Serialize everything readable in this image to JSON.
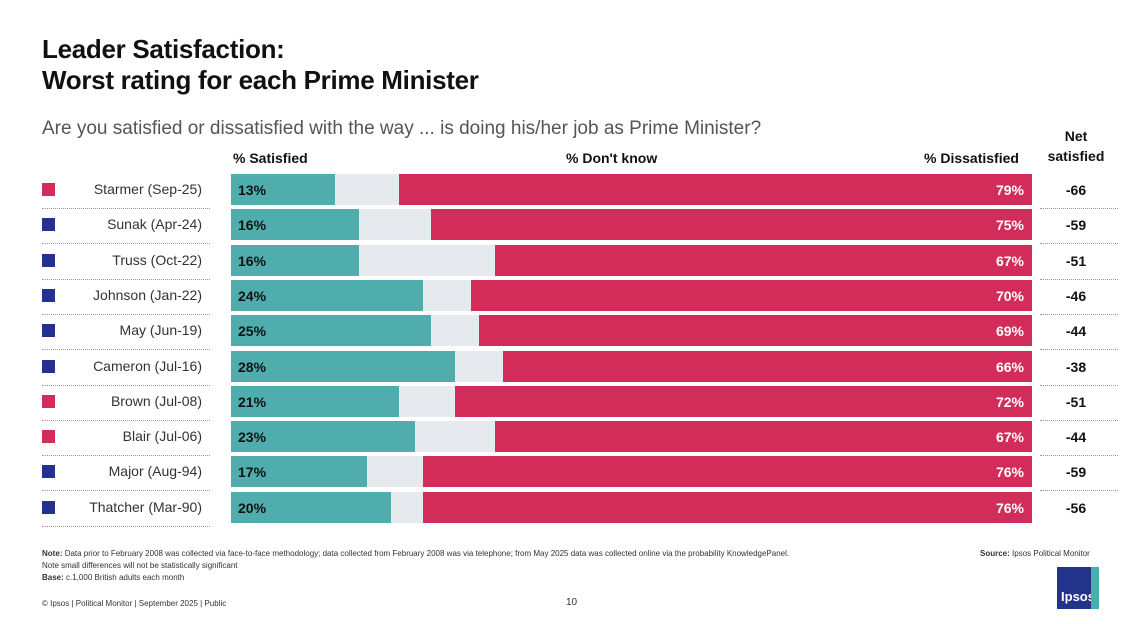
{
  "title_line1": "Leader Satisfaction:",
  "title_line2": "Worst rating for each Prime Minister",
  "question": "Are you satisfied or dissatisfied with the way ... is doing his/her job as Prime Minister?",
  "colors": {
    "satisfied": "#4fadad",
    "dont_know": "#e6e9ee",
    "dissatisfied": "#d22d5a",
    "labour": "#d22d5a",
    "conservative": "#24318f"
  },
  "chart_data": {
    "type": "bar",
    "orientation": "horizontal-stacked",
    "headers": {
      "satisfied": "% Satisfied",
      "dont_know": "% Don't know",
      "dissatisfied": "% Dissatisfied",
      "net_line1": "Net",
      "net_line2": "satisfied"
    },
    "categories": [
      "Starmer (Sep-25)",
      "Sunak (Apr-24)",
      "Truss (Oct-22)",
      "Johnson (Jan-22)",
      "May (Jun-19)",
      "Cameron (Jul-16)",
      "Brown (Jul-08)",
      "Blair (Jul-06)",
      "Major (Aug-94)",
      "Thatcher (Mar-90)"
    ],
    "party": [
      "labour",
      "conservative",
      "conservative",
      "conservative",
      "conservative",
      "conservative",
      "labour",
      "labour",
      "conservative",
      "conservative"
    ],
    "series": [
      {
        "name": "% Satisfied",
        "values": [
          13,
          16,
          16,
          24,
          25,
          28,
          21,
          23,
          17,
          20
        ]
      },
      {
        "name": "% Don't know",
        "values": [
          8,
          9,
          17,
          6,
          6,
          6,
          7,
          10,
          7,
          4
        ]
      },
      {
        "name": "% Dissatisfied",
        "values": [
          79,
          75,
          67,
          70,
          69,
          66,
          72,
          67,
          76,
          76
        ]
      }
    ],
    "satisfied_labels": [
      "13%",
      "16%",
      "16%",
      "24%",
      "25%",
      "28%",
      "21%",
      "23%",
      "17%",
      "20%"
    ],
    "dissatisfied_labels": [
      "79%",
      "75%",
      "67%",
      "70%",
      "69%",
      "66%",
      "72%",
      "67%",
      "76%",
      "76%"
    ],
    "net": [
      "-66",
      "-59",
      "-51",
      "-46",
      "-44",
      "-38",
      "-51",
      "-44",
      "-59",
      "-56"
    ]
  },
  "footer": {
    "note_label": "Note:",
    "note": "Data prior to February 2008 was collected via face-to-face methodology; data collected from February 2008 was via telephone; from May 2025 data was collected online via the probability KnowledgePanel. Note small differences will not be statistically significant",
    "base_label": "Base:",
    "base": "c.1,000 British adults each month",
    "source_label": "Source:",
    "source": "Ipsos Political Monitor",
    "copyright": "© Ipsos | Political Monitor | September 2025 | Public",
    "page": "10",
    "logo": "Ipsos"
  }
}
